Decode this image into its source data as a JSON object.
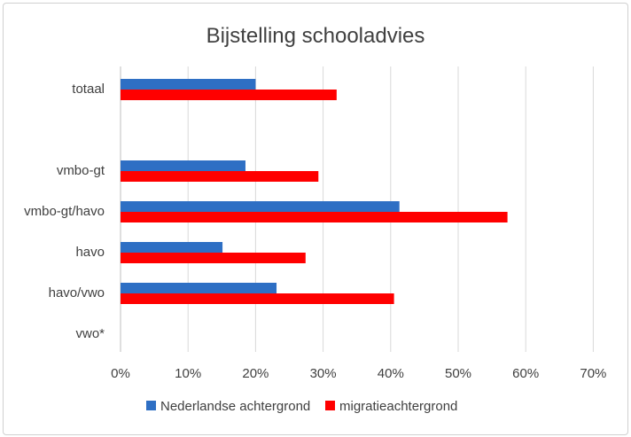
{
  "chart_data": {
    "type": "bar",
    "orientation": "horizontal",
    "title": "Bijstelling schooladvies",
    "categories": [
      "totaal",
      "",
      "vmbo-gt",
      "vmbo-gt/havo",
      "havo",
      "havo/vwo",
      "vwo*"
    ],
    "series": [
      {
        "name": "Nederlandse achtergrond",
        "color": "#2e6fc4",
        "values": [
          20,
          null,
          18.5,
          41.3,
          15.1,
          23.1,
          null
        ]
      },
      {
        "name": "migratieachtergrond",
        "color": "#ff0000",
        "values": [
          32,
          null,
          29.3,
          57.3,
          27.4,
          40.5,
          null
        ]
      }
    ],
    "xlim": [
      0,
      70
    ],
    "xticks": [
      0,
      10,
      20,
      30,
      40,
      50,
      60,
      70
    ],
    "tick_suffix": "%",
    "grid": "vertical",
    "legend": "bottom"
  }
}
